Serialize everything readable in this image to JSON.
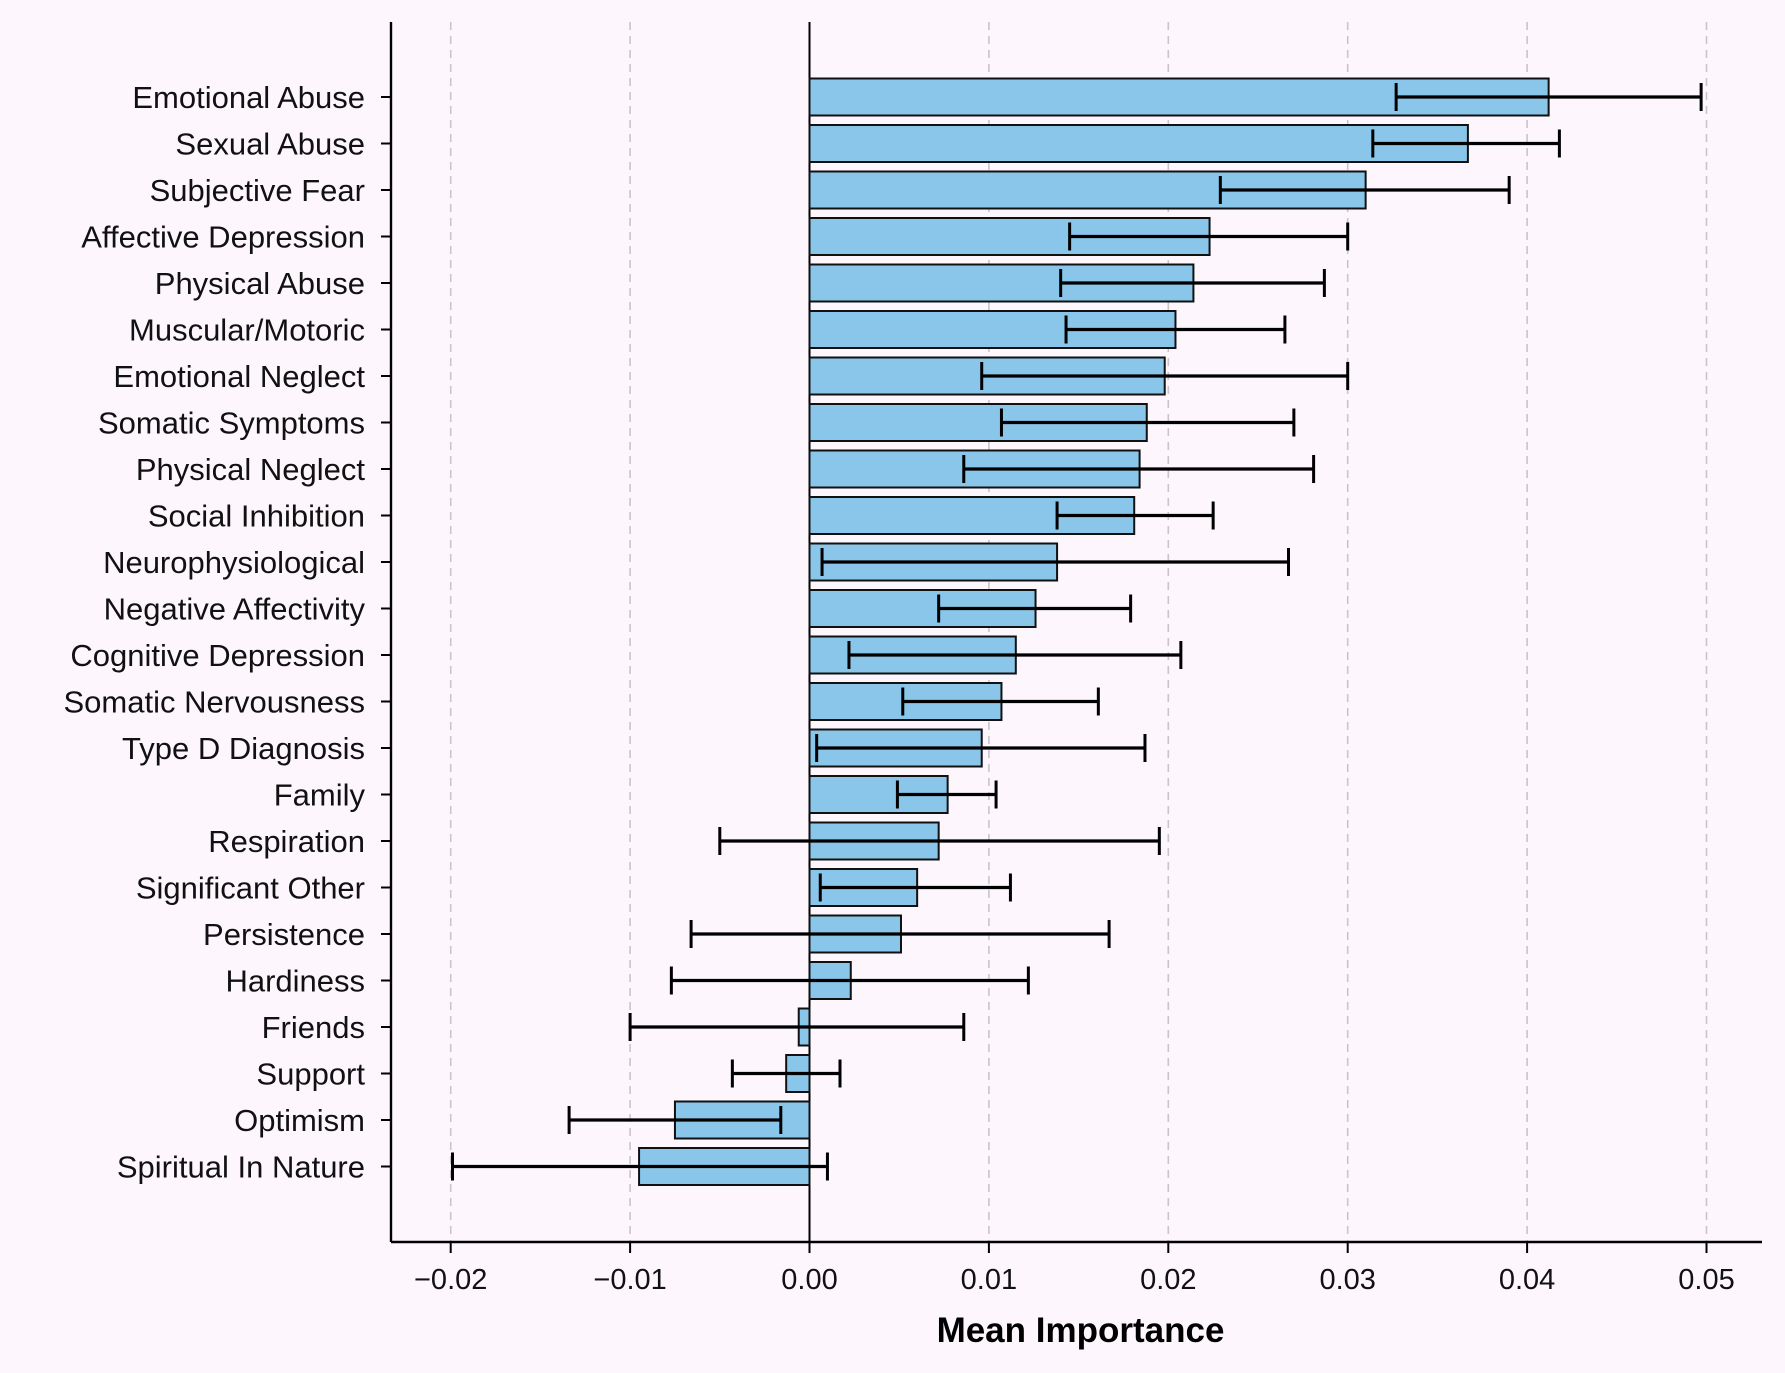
{
  "chart_data": {
    "type": "bar",
    "orientation": "horizontal",
    "title": "",
    "xlabel": "Mean Importance",
    "ylabel": "",
    "xlim": [
      -0.0233,
      0.0533
    ],
    "xticks": [
      -0.02,
      -0.01,
      0.0,
      0.01,
      0.02,
      0.03,
      0.04,
      0.05
    ],
    "xtick_labels": [
      "−0.02",
      "−0.01",
      "0.00",
      "0.01",
      "0.02",
      "0.03",
      "0.04",
      "0.05"
    ],
    "grid": "x dashed",
    "bar_color": "#89c6ea",
    "categories": [
      "Emotional Abuse",
      "Sexual Abuse",
      "Subjective Fear",
      "Affective Depression",
      "Physical Abuse",
      "Muscular/Motoric",
      "Emotional Neglect",
      "Somatic Symptoms",
      "Physical Neglect",
      "Social Inhibition",
      "Neurophysiological",
      "Negative Affectivity",
      "Cognitive Depression",
      "Somatic Nervousness",
      "Type D Diagnosis",
      "Family",
      "Respiration",
      "Significant Other",
      "Persistence",
      "Hardiness",
      "Friends",
      "Support",
      "Optimism",
      "Spiritual In Nature"
    ],
    "values": [
      0.0412,
      0.0367,
      0.031,
      0.0223,
      0.0214,
      0.0204,
      0.0198,
      0.0188,
      0.0184,
      0.0181,
      0.0138,
      0.0126,
      0.0115,
      0.0107,
      0.0096,
      0.0077,
      0.0072,
      0.006,
      0.0051,
      0.0023,
      -0.0006,
      -0.0013,
      -0.0075,
      -0.0095
    ],
    "error_low": [
      0.0327,
      0.0314,
      0.0229,
      0.0145,
      0.014,
      0.0143,
      0.0096,
      0.0107,
      0.0086,
      0.0138,
      0.0007,
      0.0072,
      0.0022,
      0.0052,
      0.0004,
      0.0049,
      -0.005,
      0.0006,
      -0.0066,
      -0.0077,
      -0.01,
      -0.0043,
      -0.0134,
      -0.0199
    ],
    "error_high": [
      0.0497,
      0.0418,
      0.039,
      0.03,
      0.0287,
      0.0265,
      0.03,
      0.027,
      0.0281,
      0.0225,
      0.0267,
      0.0179,
      0.0207,
      0.0161,
      0.0187,
      0.0104,
      0.0195,
      0.0112,
      0.0167,
      0.0122,
      0.0086,
      0.0017,
      -0.0016,
      0.001
    ]
  }
}
